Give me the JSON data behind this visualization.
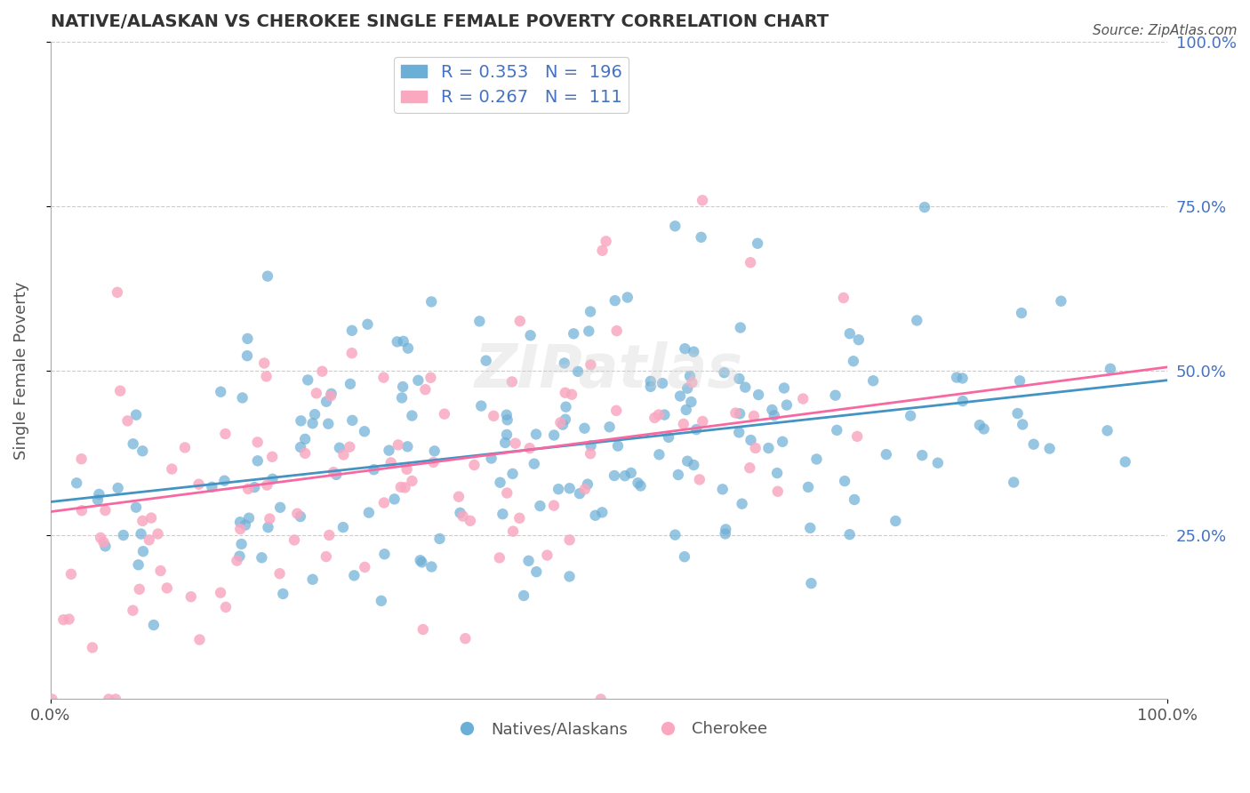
{
  "title": "NATIVE/ALASKAN VS CHEROKEE SINGLE FEMALE POVERTY CORRELATION CHART",
  "source_text": "Source: ZipAtlas.com",
  "ylabel": "Single Female Poverty",
  "xlabel": "",
  "xlim": [
    0.0,
    1.0
  ],
  "ylim": [
    0.0,
    1.0
  ],
  "xtick_labels": [
    "0.0%",
    "100.0%"
  ],
  "ytick_labels_right": [
    "25.0%",
    "50.0%",
    "75.0%",
    "100.0%"
  ],
  "legend_entries": [
    {
      "label": "R = 0.353   N =  196",
      "color": "#7eb3e0"
    },
    {
      "label": "R = 0.267   N =  111",
      "color": "#f4a0b5"
    }
  ],
  "legend_label1": "Natives/Alaskans",
  "legend_label2": "Cherokee",
  "blue_color": "#6baed6",
  "pink_color": "#f9a8c0",
  "blue_line_color": "#4393c3",
  "pink_line_color": "#f768a1",
  "title_color": "#333333",
  "axis_label_color": "#555555",
  "tick_color": "#4472c4",
  "grid_color": "#cccccc",
  "R_blue": 0.353,
  "N_blue": 196,
  "R_pink": 0.267,
  "N_pink": 111,
  "blue_intercept": 0.3,
  "blue_slope": 0.185,
  "pink_intercept": 0.285,
  "pink_slope": 0.22,
  "background_color": "#ffffff"
}
